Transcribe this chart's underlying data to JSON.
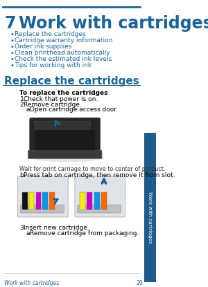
{
  "bg_color": "#ffffff",
  "top_line_color": "#1a6496",
  "chapter_num": "7",
  "chapter_title": "Work with cartridges",
  "title_color": "#1a6496",
  "bullet_links": [
    "Replace the cartridges",
    "Cartridge warranty information",
    "Order ink supplies",
    "Clean printhead automatically",
    "Check the estimated ink levels",
    "Tips for working with ink"
  ],
  "link_color": "#1a6496",
  "section_title": "Replace the cartridges",
  "section_title_color": "#1a6496",
  "bold_label": "To replace the cartridges",
  "steps": [
    "Check that power is on.",
    "Remove cartridge.",
    "Insert new cartridge."
  ],
  "sub_steps_2": [
    "Open cartridge access door.",
    "Press tab on cartridge, then remove it from slot."
  ],
  "wait_text": "Wait for print carriage to move to center of product.",
  "sub_steps_3": [
    "Remove cartridge from packaging."
  ],
  "sidebar_color": "#1f5c8b",
  "sidebar_text": "Work with cartridges",
  "sidebar_text_color": "#ffffff",
  "footer_text": "Work with cartridges",
  "footer_page": "29",
  "footer_color": "#1a6496"
}
